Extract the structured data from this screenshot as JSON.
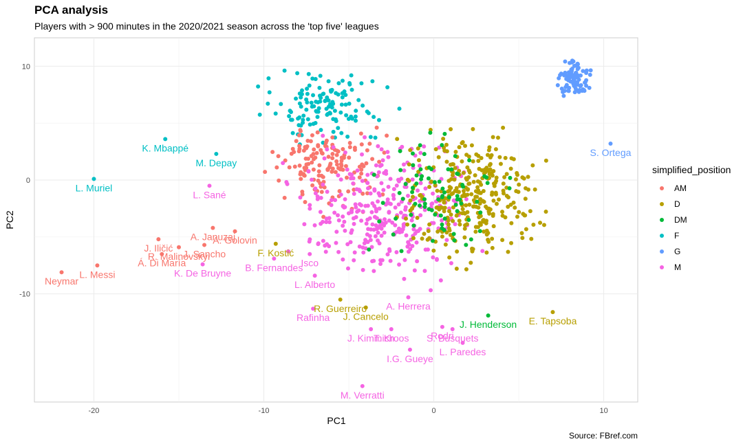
{
  "title": "PCA analysis",
  "subtitle": "Players with > 900 minutes in the 2020/2021 season across the 'top five' leagues",
  "caption": "Source: FBref.com",
  "colors": {
    "AM": "#F8766D",
    "D": "#B79F00",
    "DM": "#00BA38",
    "F": "#00BFC4",
    "G": "#619CFF",
    "M": "#F564E3"
  },
  "chart_data": {
    "type": "scatter",
    "xlabel": "PC1",
    "ylabel": "PC2",
    "xlim": [
      -23.5,
      12
    ],
    "ylim": [
      -19.5,
      12.5
    ],
    "xticks": [
      -20,
      -10,
      0,
      10
    ],
    "yticks": [
      -10,
      0,
      10
    ],
    "grid": true,
    "legend": {
      "title": "simplified_position",
      "placement": "right",
      "entries": [
        "AM",
        "D",
        "DM",
        "F",
        "G",
        "M"
      ]
    },
    "labeled_points": [
      {
        "label": "Neymar",
        "group": "AM",
        "x": -21.9,
        "y": -8.1
      },
      {
        "label": "L. Messi",
        "group": "AM",
        "x": -19.8,
        "y": -7.5
      },
      {
        "label": "L. Muriel",
        "group": "F",
        "x": -20.0,
        "y": 0.1
      },
      {
        "label": "K. Mbappé",
        "group": "F",
        "x": -15.8,
        "y": 3.6
      },
      {
        "label": "M. Depay",
        "group": "F",
        "x": -12.8,
        "y": 2.3
      },
      {
        "label": "L. Sané",
        "group": "M",
        "x": -13.2,
        "y": -0.5
      },
      {
        "label": "A. Januzaj",
        "group": "AM",
        "x": -13.0,
        "y": -4.2
      },
      {
        "label": "J. Iličić",
        "group": "AM",
        "x": -16.2,
        "y": -5.2
      },
      {
        "label": "R. Malinovskyi",
        "group": "AM",
        "x": -15.0,
        "y": -5.9
      },
      {
        "label": "A. Golovin",
        "group": "AM",
        "x": -11.7,
        "y": -4.5
      },
      {
        "label": "Á. Di María",
        "group": "AM",
        "x": -16.0,
        "y": -6.5
      },
      {
        "label": "J. Sancho",
        "group": "AM",
        "x": -13.5,
        "y": -5.7
      },
      {
        "label": "F. Kostić",
        "group": "D",
        "x": -9.3,
        "y": -5.6
      },
      {
        "label": "K. De Bruyne",
        "group": "M",
        "x": -13.6,
        "y": -7.4
      },
      {
        "label": "B. Fernandes",
        "group": "M",
        "x": -9.4,
        "y": -6.9
      },
      {
        "label": "Isco",
        "group": "M",
        "x": -7.3,
        "y": -6.5
      },
      {
        "label": "L. Alberto",
        "group": "M",
        "x": -7.0,
        "y": -8.4
      },
      {
        "label": "R. Guerreiro",
        "group": "D",
        "x": -5.5,
        "y": -10.5
      },
      {
        "label": "A. Herrera",
        "group": "M",
        "x": -1.5,
        "y": -10.3
      },
      {
        "label": "J. Cancelo",
        "group": "D",
        "x": -4.0,
        "y": -11.2
      },
      {
        "label": "Rafinha",
        "group": "M",
        "x": -7.1,
        "y": -11.3
      },
      {
        "label": "Rodri",
        "group": "M",
        "x": 0.5,
        "y": -12.9
      },
      {
        "label": "J. Henderson",
        "group": "DM",
        "x": 3.2,
        "y": -11.9
      },
      {
        "label": "E. Tapsoba",
        "group": "D",
        "x": 7.0,
        "y": -11.6
      },
      {
        "label": "J. Kimmich",
        "group": "M",
        "x": -3.7,
        "y": -13.1
      },
      {
        "label": "T. Kroos",
        "group": "M",
        "x": -2.5,
        "y": -13.1
      },
      {
        "label": "S. Busquets",
        "group": "M",
        "x": 1.1,
        "y": -13.1
      },
      {
        "label": "L. Paredes",
        "group": "M",
        "x": 1.7,
        "y": -14.3
      },
      {
        "label": "I.G. Gueye",
        "group": "M",
        "x": -1.4,
        "y": -14.9
      },
      {
        "label": "M. Verratti",
        "group": "M",
        "x": -4.2,
        "y": -18.1
      },
      {
        "label": "S. Ortega",
        "group": "G",
        "x": 10.4,
        "y": 3.2
      }
    ],
    "cluster_points": {
      "F": {
        "count": 130,
        "x_range": [
          -11.5,
          -1.5
        ],
        "y_range": [
          2.5,
          10.4
        ]
      },
      "AM": {
        "count": 150,
        "x_range": [
          -10.5,
          -2.0
        ],
        "y_range": [
          -3.5,
          6.5
        ]
      },
      "M": {
        "count": 330,
        "x_range": [
          -10.0,
          4.0
        ],
        "y_range": [
          -11.0,
          5.0
        ]
      },
      "D": {
        "count": 330,
        "x_range": [
          -3.0,
          7.5
        ],
        "y_range": [
          -9.0,
          6.5
        ]
      },
      "DM": {
        "count": 80,
        "x_range": [
          -5.0,
          5.5
        ],
        "y_range": [
          -8.0,
          5.5
        ]
      },
      "G": {
        "count": 95,
        "x_range": [
          7.0,
          9.5
        ],
        "y_range": [
          7.0,
          11.0
        ]
      }
    }
  }
}
